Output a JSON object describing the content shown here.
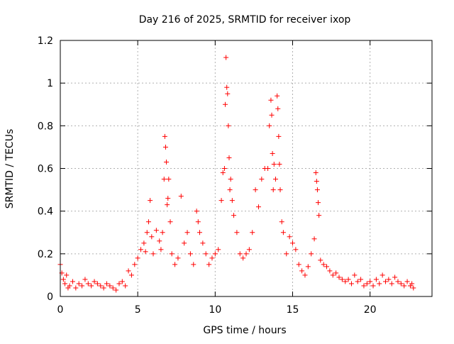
{
  "chart_data": {
    "type": "scatter",
    "title": "Day 216 of 2025, SRMTID for receiver ixop",
    "xlabel": "GPS time / hours",
    "ylabel": "SRMTID / TECUs",
    "xlim": [
      0,
      24
    ],
    "ylim": [
      0,
      1.2
    ],
    "x_ticks": [
      0,
      5,
      10,
      15,
      20
    ],
    "x_tick_labels": [
      "0",
      "5",
      "10",
      "15",
      "20"
    ],
    "y_ticks": [
      0,
      0.2,
      0.4,
      0.6,
      0.8,
      1.0,
      1.2
    ],
    "y_tick_labels": [
      "0",
      "0.2",
      "0.4",
      "0.6",
      "0.8",
      "1",
      "1.2"
    ],
    "grid": true,
    "marker": "+",
    "colors": {
      "points": "#ff0000",
      "grid": "#b0b0b0",
      "axes": "#000000"
    },
    "series": [
      {
        "name": "SRMTID",
        "x": [
          0.0,
          0.1,
          0.2,
          0.3,
          0.4,
          0.5,
          0.6,
          0.8,
          1.0,
          1.2,
          1.4,
          1.6,
          1.8,
          2.0,
          2.2,
          2.4,
          2.6,
          2.8,
          3.0,
          3.2,
          3.4,
          3.6,
          3.8,
          4.0,
          4.2,
          4.4,
          4.6,
          4.8,
          5.0,
          5.2,
          5.4,
          5.5,
          5.6,
          5.7,
          5.8,
          5.9,
          6.0,
          6.2,
          6.4,
          6.5,
          6.6,
          6.7,
          6.75,
          6.8,
          6.85,
          6.9,
          6.95,
          7.0,
          7.1,
          7.2,
          7.4,
          7.6,
          7.8,
          8.0,
          8.2,
          8.4,
          8.6,
          8.8,
          8.9,
          9.0,
          9.2,
          9.4,
          9.6,
          9.8,
          10.0,
          10.2,
          10.4,
          10.5,
          10.6,
          10.65,
          10.7,
          10.75,
          10.8,
          10.85,
          10.9,
          10.95,
          11.0,
          11.1,
          11.2,
          11.4,
          11.6,
          11.8,
          12.0,
          12.2,
          12.4,
          12.6,
          12.8,
          13.0,
          13.2,
          13.4,
          13.5,
          13.6,
          13.65,
          13.7,
          13.75,
          13.8,
          13.9,
          14.0,
          14.05,
          14.1,
          14.15,
          14.2,
          14.3,
          14.4,
          14.6,
          14.8,
          15.0,
          15.2,
          15.4,
          15.6,
          15.8,
          16.0,
          16.2,
          16.4,
          16.5,
          16.55,
          16.6,
          16.65,
          16.7,
          16.8,
          17.0,
          17.2,
          17.4,
          17.6,
          17.8,
          18.0,
          18.2,
          18.4,
          18.6,
          18.8,
          19.0,
          19.2,
          19.4,
          19.6,
          19.8,
          20.0,
          20.2,
          20.4,
          20.6,
          20.8,
          21.0,
          21.2,
          21.4,
          21.6,
          21.8,
          22.0,
          22.2,
          22.4,
          22.6,
          22.7,
          22.8
        ],
        "y": [
          0.15,
          0.11,
          0.08,
          0.06,
          0.1,
          0.04,
          0.05,
          0.07,
          0.04,
          0.06,
          0.05,
          0.08,
          0.06,
          0.05,
          0.07,
          0.06,
          0.05,
          0.04,
          0.06,
          0.05,
          0.04,
          0.03,
          0.06,
          0.07,
          0.05,
          0.12,
          0.1,
          0.15,
          0.18,
          0.22,
          0.25,
          0.21,
          0.3,
          0.35,
          0.45,
          0.28,
          0.2,
          0.31,
          0.26,
          0.22,
          0.3,
          0.55,
          0.75,
          0.7,
          0.63,
          0.43,
          0.46,
          0.55,
          0.35,
          0.2,
          0.15,
          0.18,
          0.47,
          0.25,
          0.3,
          0.2,
          0.15,
          0.4,
          0.35,
          0.3,
          0.25,
          0.2,
          0.15,
          0.18,
          0.2,
          0.22,
          0.45,
          0.58,
          0.6,
          0.9,
          1.12,
          0.98,
          0.95,
          0.8,
          0.65,
          0.5,
          0.55,
          0.45,
          0.38,
          0.3,
          0.2,
          0.18,
          0.2,
          0.22,
          0.3,
          0.5,
          0.42,
          0.55,
          0.6,
          0.6,
          0.8,
          0.92,
          0.85,
          0.67,
          0.5,
          0.62,
          0.55,
          0.94,
          0.88,
          0.75,
          0.62,
          0.5,
          0.35,
          0.3,
          0.2,
          0.28,
          0.25,
          0.22,
          0.15,
          0.12,
          0.1,
          0.14,
          0.2,
          0.27,
          0.58,
          0.54,
          0.5,
          0.44,
          0.38,
          0.17,
          0.15,
          0.14,
          0.12,
          0.1,
          0.11,
          0.09,
          0.08,
          0.07,
          0.08,
          0.06,
          0.1,
          0.07,
          0.08,
          0.05,
          0.06,
          0.07,
          0.05,
          0.08,
          0.06,
          0.1,
          0.07,
          0.08,
          0.06,
          0.09,
          0.07,
          0.06,
          0.05,
          0.07,
          0.05,
          0.06,
          0.04
        ]
      }
    ]
  }
}
